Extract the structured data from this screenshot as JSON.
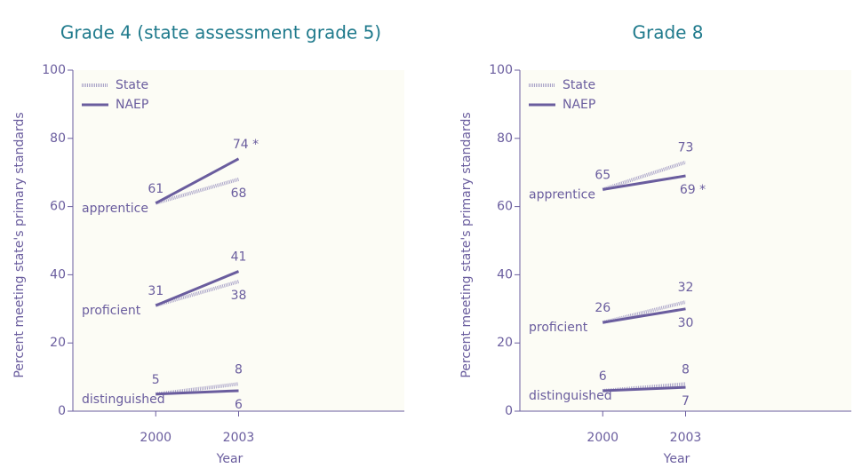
{
  "chart_data": [
    {
      "type": "line",
      "title": "Grade 4 (state assessment grade 5)",
      "xlabel": "Year",
      "ylabel": "Percent meeting state's primary standards",
      "categories": [
        "2000",
        "2003"
      ],
      "levels": [
        "apprentice",
        "proficient",
        "distinguished"
      ],
      "ylim": [
        0,
        100
      ],
      "yticks": [
        0,
        20,
        40,
        60,
        80,
        100
      ],
      "legend": "top-left",
      "series": [
        {
          "name": "State",
          "color": "#aaa4c8",
          "dashed": true,
          "values": [
            [
              61,
              68
            ],
            [
              31,
              38
            ],
            [
              5,
              8
            ]
          ]
        },
        {
          "name": "NAEP",
          "color": "#6a5d9e",
          "dashed": false,
          "values": [
            [
              61,
              74
            ],
            [
              31,
              41
            ],
            [
              5,
              6
            ]
          ],
          "value_labels": [
            [
              "61",
              "74 *"
            ],
            [
              "31",
              "41"
            ],
            [
              "5",
              "6"
            ]
          ]
        }
      ]
    },
    {
      "type": "line",
      "title": "Grade 8",
      "xlabel": "Year",
      "ylabel": "Percent meeting state's primary standards",
      "categories": [
        "2000",
        "2003"
      ],
      "levels": [
        "apprentice",
        "proficient",
        "distinguished"
      ],
      "ylim": [
        0,
        100
      ],
      "yticks": [
        0,
        20,
        40,
        60,
        80,
        100
      ],
      "legend": "top-left",
      "series": [
        {
          "name": "State",
          "color": "#aaa4c8",
          "dashed": true,
          "values": [
            [
              65,
              73
            ],
            [
              26,
              32
            ],
            [
              6,
              8
            ]
          ]
        },
        {
          "name": "NAEP",
          "color": "#6a5d9e",
          "dashed": false,
          "values": [
            [
              65,
              69
            ],
            [
              26,
              30
            ],
            [
              6,
              7
            ]
          ],
          "value_labels": [
            [
              "65",
              "69 *"
            ],
            [
              "26",
              "30"
            ],
            [
              "6",
              "7"
            ]
          ]
        }
      ]
    }
  ]
}
